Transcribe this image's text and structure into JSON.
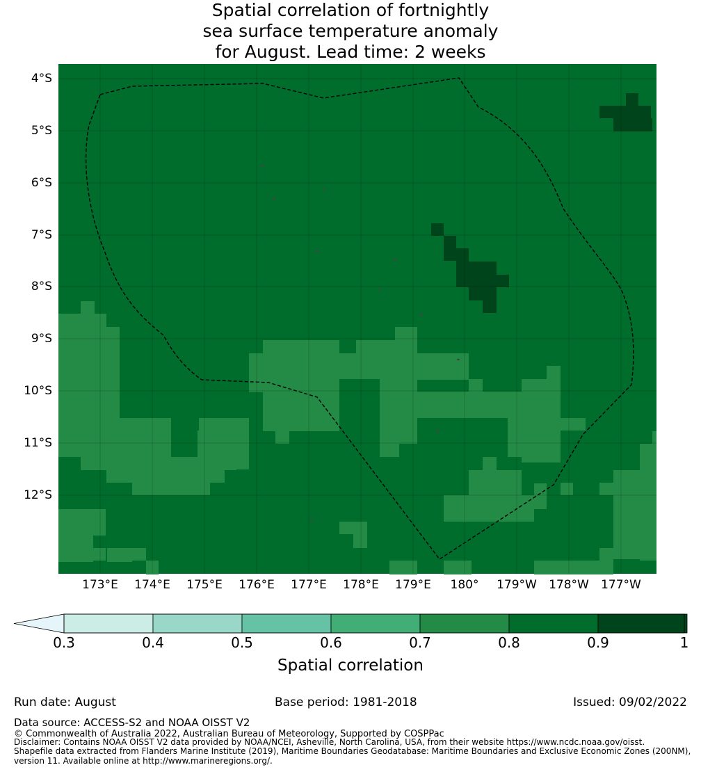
{
  "title": {
    "line1": "Spatial correlation of fortnightly",
    "line2": "sea surface temperature anomaly",
    "line3": "for August. Lead time: 2 weeks"
  },
  "map": {
    "lat_labels": [
      "4°S",
      "5°S",
      "6°S",
      "7°S",
      "8°S",
      "9°S",
      "10°S",
      "11°S",
      "12°S"
    ],
    "lon_labels": [
      "173°E",
      "174°E",
      "175°E",
      "176°E",
      "177°E",
      "178°E",
      "179°E",
      "180°",
      "179°W",
      "178°W",
      "177°W"
    ],
    "background_class": "0.8-0.9",
    "cell_classes": [
      {
        "range": "0.7-0.8",
        "color": "#238b45"
      },
      {
        "range": "0.8-0.9",
        "color": "#006d2c"
      },
      {
        "range": "0.9-1",
        "color": "#00441b"
      }
    ],
    "boundary": "EEZ (dashed)"
  },
  "colorbar": {
    "label": "Spatial correlation",
    "ticks": [
      "0.3",
      "0.4",
      "0.5",
      "0.6",
      "0.7",
      "0.8",
      "0.9",
      "1"
    ],
    "colors": [
      "#ccece6",
      "#99d8c9",
      "#66c2a4",
      "#41ae76",
      "#238b45",
      "#006d2c",
      "#00441b"
    ],
    "extend_color": "#e5f5f9"
  },
  "footer": {
    "run_date": "Run date: August",
    "base_period": "Base period: 1981-2018",
    "issued": "Issued: 09/02/2022",
    "data_source": "Data source: ACCESS-S2 and NOAA OISST V2",
    "copyright": "© Commonwealth of Australia 2022, Australian Bureau of Meteorology, Supported by COSPPac",
    "disclaimer": "Disclaimer: Contains NOAA OISST V2 data provided by NOAA/NCEI, Asheville, North Carolina, USA, from their website https://www.ncdc.noaa.gov/oisst.",
    "shapefile1": "Shapefile data extracted from Flanders Marine Institute (2019), Maritime Boundaries Geodatabase: Maritime Boundaries and Exclusive Economic Zones (200NM),",
    "shapefile2": "version 11. Available online at http://www.marineregions.org/."
  }
}
